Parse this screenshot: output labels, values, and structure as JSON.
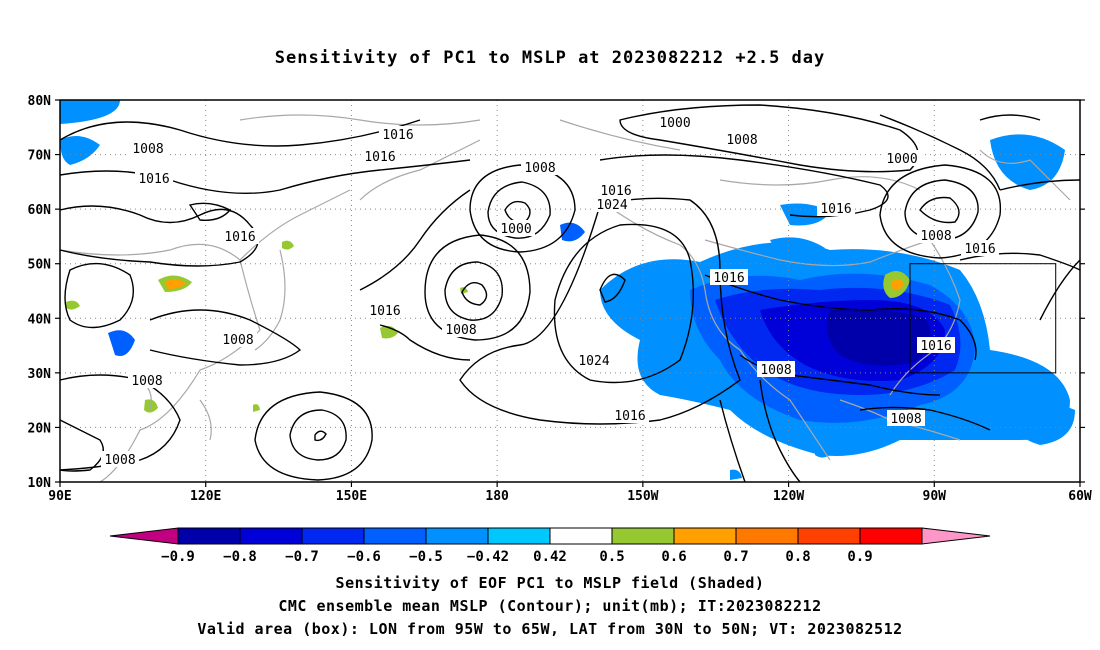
{
  "title": "Sensitivity of PC1 to MSLP at 2023082212 +2.5 day",
  "map": {
    "lat_ticks": [
      "80N",
      "70N",
      "60N",
      "50N",
      "40N",
      "30N",
      "20N",
      "10N"
    ],
    "lon_ticks": [
      "90E",
      "120E",
      "150E",
      "180",
      "150W",
      "120W",
      "90W",
      "60W"
    ],
    "lon_range": [
      90,
      300
    ],
    "lat_range": [
      10,
      80
    ],
    "contour_labels": [
      {
        "text": "1016"
      },
      {
        "text": "1016"
      },
      {
        "text": "1008"
      },
      {
        "text": "1016"
      },
      {
        "text": "1016"
      },
      {
        "text": "1008"
      },
      {
        "text": "1016"
      },
      {
        "text": "1024"
      },
      {
        "text": "1000"
      },
      {
        "text": "1000"
      },
      {
        "text": "1008"
      },
      {
        "text": "1000"
      },
      {
        "text": "1016"
      },
      {
        "text": "1008"
      },
      {
        "text": "1016"
      },
      {
        "text": "1016"
      },
      {
        "text": "1016"
      },
      {
        "text": "1008"
      },
      {
        "text": "1024"
      },
      {
        "text": "1016"
      },
      {
        "text": "1008"
      },
      {
        "text": "1008"
      },
      {
        "text": "1016"
      },
      {
        "text": "1008"
      },
      {
        "text": "1008"
      },
      {
        "text": "1008"
      }
    ],
    "valid_box": {
      "lon_from": "95W",
      "lon_to": "65W",
      "lat_from": "30N",
      "lat_to": "50N"
    }
  },
  "colorbar": {
    "colors": [
      "#c00080",
      "#0000aa",
      "#0000d8",
      "#0028f0",
      "#0060ff",
      "#0090ff",
      "#00c8ff",
      "#ffffff",
      "#96c832",
      "#ffa000",
      "#ff7800",
      "#ff4000",
      "#ff0000",
      "#ff96c8"
    ],
    "labels": [
      "-0.9",
      "-0.8",
      "-0.7",
      "-0.6",
      "-0.5",
      "-0.42",
      "0.42",
      "0.5",
      "0.6",
      "0.7",
      "0.8",
      "0.9"
    ]
  },
  "caption": {
    "line1": "Sensitivity of EOF PC1 to MSLP field (Shaded)",
    "line2": "CMC ensemble mean MSLP (Contour); unit(mb); IT:2023082212",
    "line3": "Valid area (box): LON from 95W to 65W, LAT from 30N to 50N; VT: 2023082512"
  }
}
